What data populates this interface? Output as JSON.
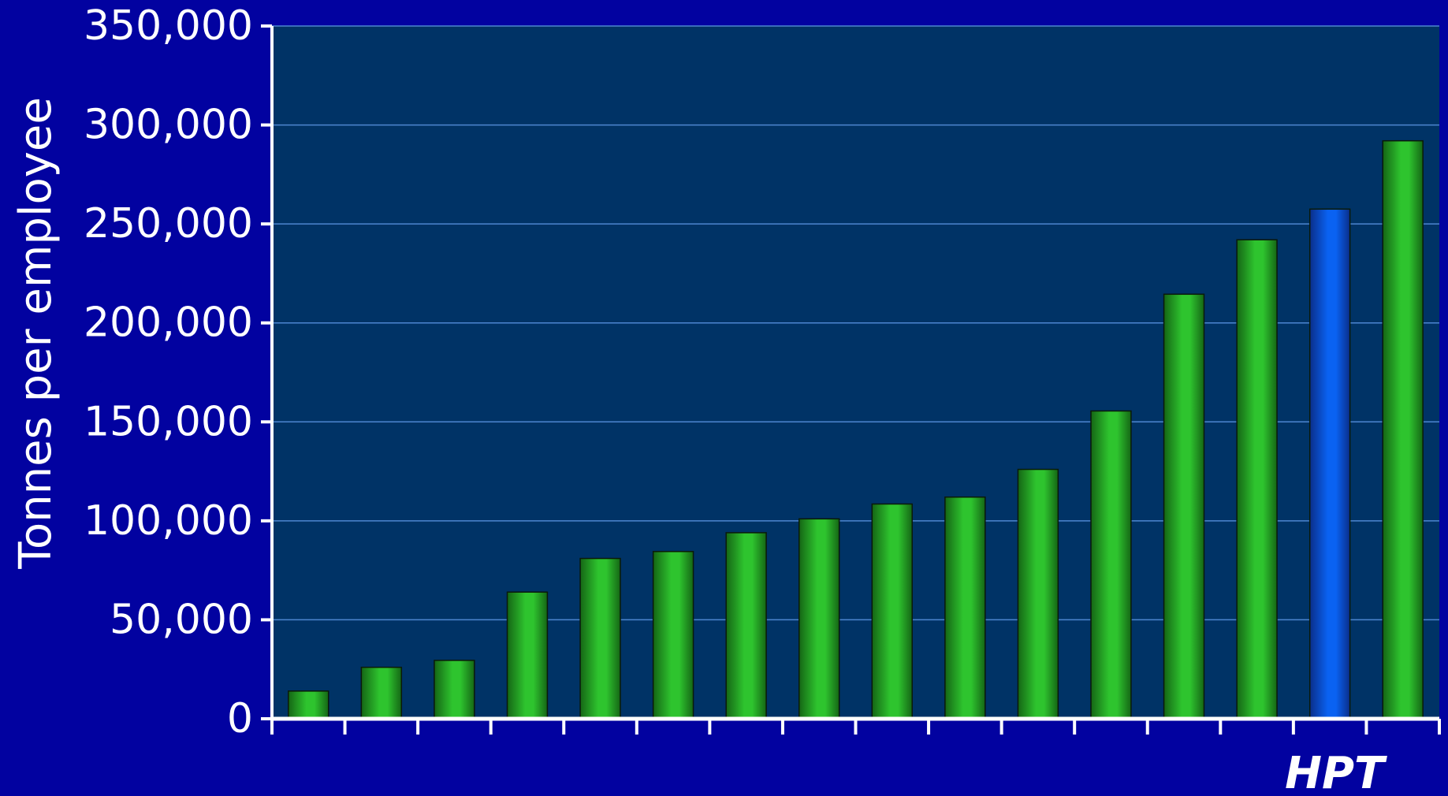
{
  "chart_data": {
    "type": "bar",
    "title": "",
    "xlabel": "",
    "ylabel": "Tonnes per employee",
    "ylim": [
      0,
      350000
    ],
    "yticks": [
      0,
      50000,
      100000,
      150000,
      200000,
      250000,
      300000,
      350000
    ],
    "ytick_labels": [
      "0",
      "50,000",
      "100,000",
      "150,000",
      "200,000",
      "250,000",
      "300,000",
      "350,000"
    ],
    "categories": [
      "",
      "",
      "",
      "",
      "",
      "",
      "",
      "",
      "",
      "",
      "",
      "",
      "",
      "",
      "HPT",
      ""
    ],
    "values": [
      14000,
      26000,
      29500,
      64000,
      81000,
      84500,
      94000,
      101000,
      108500,
      112000,
      126000,
      155500,
      214500,
      242000,
      257500,
      292000
    ],
    "highlight_index": 14,
    "highlight_label": "HPT",
    "grid": true,
    "legend": "none",
    "colors": {
      "background": "#0202a0",
      "plot_area": "#003366",
      "bar": "#2ec42e",
      "bar_dark": "#156615",
      "highlight_bar": "#0a62f2",
      "highlight_bar_dark": "#0a2e8a",
      "gridline": "#4d86d0",
      "axis": "#ffffff",
      "text": "#ffffff"
    }
  }
}
